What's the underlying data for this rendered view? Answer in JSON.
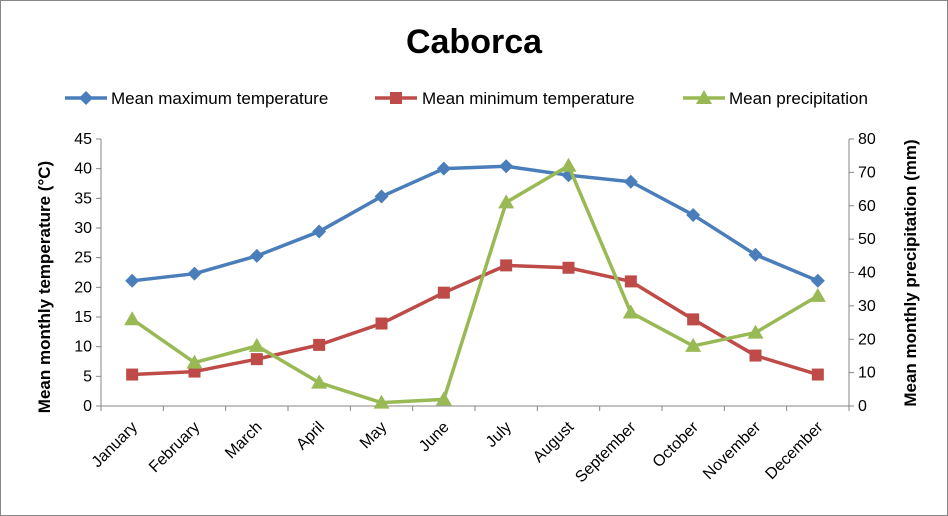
{
  "chart_data": {
    "type": "line",
    "title": "Caborca",
    "categories": [
      "January",
      "February",
      "March",
      "April",
      "May",
      "June",
      "July",
      "August",
      "September",
      "October",
      "November",
      "December"
    ],
    "ylabel": "Mean monthly temperature (°C)",
    "y2label": "Mean monthly precipitation (mm)",
    "ylim": [
      0,
      45
    ],
    "y2lim": [
      0,
      80
    ],
    "yticks": [
      "0",
      "5",
      "10",
      "15",
      "20",
      "25",
      "30",
      "35",
      "40",
      "45"
    ],
    "y2ticks": [
      "0",
      "10",
      "20",
      "30",
      "40",
      "50",
      "60",
      "70",
      "80"
    ],
    "grid": false,
    "legend": "top",
    "series": [
      {
        "name": "Mean maximum temperature",
        "axis": "left",
        "color": "#4a7ebb",
        "marker": "diamond",
        "values": [
          21.1,
          22.3,
          25.3,
          29.4,
          35.3,
          40.0,
          40.4,
          38.9,
          37.8,
          32.2,
          25.5,
          21.1
        ]
      },
      {
        "name": "Mean minimum temperature",
        "axis": "left",
        "color": "#be4b48",
        "marker": "square",
        "values": [
          5.3,
          5.8,
          7.9,
          10.3,
          13.9,
          19.1,
          23.7,
          23.3,
          21.0,
          14.6,
          8.5,
          5.3
        ]
      },
      {
        "name": "Mean precipitation",
        "axis": "right",
        "color": "#98b954",
        "marker": "triangle",
        "values": [
          26,
          13,
          18,
          7,
          1,
          2,
          61,
          72,
          28,
          18,
          22,
          33
        ]
      }
    ]
  }
}
